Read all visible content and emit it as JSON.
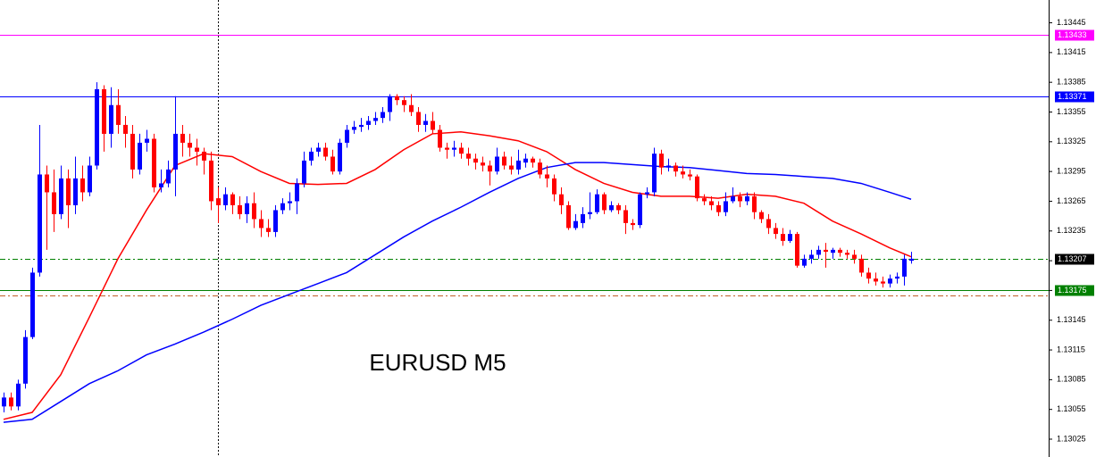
{
  "chart_data": {
    "type": "candlestick",
    "annotation": "EURUSD M5",
    "ylim": [
      1.13007,
      1.13468
    ],
    "yticks": [
      1.13025,
      1.13055,
      1.13085,
      1.13115,
      1.13145,
      1.13175,
      1.13205,
      1.13235,
      1.13265,
      1.13295,
      1.13325,
      1.13355,
      1.13385,
      1.13415,
      1.13445
    ],
    "up_color": "#0000ff",
    "down_color": "#ff0000",
    "cursor_index": 30,
    "levels": [
      {
        "value": 1.13433,
        "color": "#ff00ff",
        "style": "solid",
        "labeled": true
      },
      {
        "value": 1.13371,
        "color": "#0000ff",
        "style": "solid",
        "labeled": true
      },
      {
        "value": 1.13207,
        "color": "#008000",
        "style": "dashdot",
        "labeled": true,
        "label_color": "#000000"
      },
      {
        "value": 1.13175,
        "color": "#008000",
        "style": "solid",
        "labeled": true
      },
      {
        "value": 1.1317,
        "color": "#c0602a",
        "style": "dashdot",
        "labeled": false
      }
    ],
    "candles": [
      [
        1.13058,
        1.13072,
        1.13052,
        1.13067
      ],
      [
        1.13067,
        1.13072,
        1.13054,
        1.13058
      ],
      [
        1.13058,
        1.13085,
        1.13054,
        1.13081
      ],
      [
        1.13081,
        1.13135,
        1.13076,
        1.13128
      ],
      [
        1.13128,
        1.13198,
        1.13126,
        1.13193
      ],
      [
        1.13193,
        1.13342,
        1.13189,
        1.13292
      ],
      [
        1.13292,
        1.13301,
        1.13216,
        1.13274
      ],
      [
        1.13274,
        1.13297,
        1.13234,
        1.13252
      ],
      [
        1.13252,
        1.13301,
        1.13247,
        1.13288
      ],
      [
        1.13288,
        1.13297,
        1.13238,
        1.13261
      ],
      [
        1.13261,
        1.1331,
        1.13252,
        1.13288
      ],
      [
        1.13288,
        1.13301,
        1.13265,
        1.13274
      ],
      [
        1.13274,
        1.1331,
        1.1327,
        1.13301
      ],
      [
        1.13301,
        1.13385,
        1.13297,
        1.13378
      ],
      [
        1.13378,
        1.13382,
        1.13315,
        1.13333
      ],
      [
        1.13333,
        1.1338,
        1.13319,
        1.13362
      ],
      [
        1.13362,
        1.13378,
        1.13333,
        1.13342
      ],
      [
        1.13342,
        1.13351,
        1.13319,
        1.13333
      ],
      [
        1.13333,
        1.13342,
        1.13288,
        1.13297
      ],
      [
        1.13297,
        1.13333,
        1.13292,
        1.13324
      ],
      [
        1.13324,
        1.13337,
        1.13315,
        1.13328
      ],
      [
        1.13328,
        1.13333,
        1.13274,
        1.13279
      ],
      [
        1.13279,
        1.13297,
        1.13274,
        1.13283
      ],
      [
        1.13283,
        1.13306,
        1.13279,
        1.13297
      ],
      [
        1.13297,
        1.13371,
        1.1327,
        1.13333
      ],
      [
        1.13333,
        1.13342,
        1.1331,
        1.13324
      ],
      [
        1.13324,
        1.13333,
        1.1331,
        1.13319
      ],
      [
        1.13319,
        1.13328,
        1.13301,
        1.13315
      ],
      [
        1.13315,
        1.13319,
        1.13292,
        1.13306
      ],
      [
        1.13306,
        1.13315,
        1.13256,
        1.13265
      ],
      [
        1.13268,
        1.13279,
        1.13243,
        1.13261
      ],
      [
        1.13261,
        1.13279,
        1.13256,
        1.13272
      ],
      [
        1.13272,
        1.13274,
        1.13252,
        1.13261
      ],
      [
        1.13261,
        1.1327,
        1.13247,
        1.13252
      ],
      [
        1.13252,
        1.1327,
        1.13243,
        1.13263
      ],
      [
        1.13263,
        1.13274,
        1.13238,
        1.13247
      ],
      [
        1.13247,
        1.13256,
        1.13229,
        1.13238
      ],
      [
        1.13238,
        1.13247,
        1.13229,
        1.13234
      ],
      [
        1.13234,
        1.13261,
        1.13229,
        1.13256
      ],
      [
        1.13256,
        1.13268,
        1.13252,
        1.13263
      ],
      [
        1.13263,
        1.13274,
        1.13256,
        1.13265
      ],
      [
        1.13265,
        1.13288,
        1.13252,
        1.13283
      ],
      [
        1.13283,
        1.13315,
        1.13279,
        1.13306
      ],
      [
        1.13306,
        1.13319,
        1.13301,
        1.13315
      ],
      [
        1.13315,
        1.13324,
        1.1331,
        1.13319
      ],
      [
        1.13319,
        1.13324,
        1.13306,
        1.1331
      ],
      [
        1.1331,
        1.13317,
        1.13292,
        1.13295
      ],
      [
        1.13295,
        1.13328,
        1.13292,
        1.13324
      ],
      [
        1.13324,
        1.13342,
        1.13319,
        1.13337
      ],
      [
        1.13337,
        1.13346,
        1.13333,
        1.1334
      ],
      [
        1.1334,
        1.13349,
        1.13335,
        1.13342
      ],
      [
        1.13342,
        1.13351,
        1.13337,
        1.13346
      ],
      [
        1.13346,
        1.13355,
        1.13342,
        1.13349
      ],
      [
        1.13349,
        1.1336,
        1.13344,
        1.13355
      ],
      [
        1.13355,
        1.13373,
        1.13346,
        1.13371
      ],
      [
        1.13371,
        1.13373,
        1.13362,
        1.13367
      ],
      [
        1.13367,
        1.13371,
        1.13355,
        1.13362
      ],
      [
        1.13362,
        1.13373,
        1.13351,
        1.13355
      ],
      [
        1.13355,
        1.1336,
        1.13335,
        1.13342
      ],
      [
        1.13342,
        1.13353,
        1.13335,
        1.13346
      ],
      [
        1.13346,
        1.13355,
        1.13333,
        1.13337
      ],
      [
        1.13337,
        1.13342,
        1.13315,
        1.13319
      ],
      [
        1.13319,
        1.13324,
        1.13308,
        1.13317
      ],
      [
        1.13317,
        1.13326,
        1.1331,
        1.13319
      ],
      [
        1.13319,
        1.13324,
        1.13308,
        1.13313
      ],
      [
        1.13313,
        1.13319,
        1.13301,
        1.13308
      ],
      [
        1.13308,
        1.13313,
        1.13297,
        1.13304
      ],
      [
        1.13304,
        1.1331,
        1.13295,
        1.13301
      ],
      [
        1.13301,
        1.13306,
        1.13281,
        1.13295
      ],
      [
        1.13295,
        1.13319,
        1.13292,
        1.1331
      ],
      [
        1.1331,
        1.13315,
        1.13297,
        1.13301
      ],
      [
        1.13301,
        1.1331,
        1.13292,
        1.13297
      ],
      [
        1.13297,
        1.13317,
        1.13292,
        1.13306
      ],
      [
        1.13304,
        1.13313,
        1.13299,
        1.13308
      ],
      [
        1.13308,
        1.1331,
        1.13299,
        1.13304
      ],
      [
        1.13304,
        1.13308,
        1.13288,
        1.13292
      ],
      [
        1.13292,
        1.13301,
        1.13279,
        1.13288
      ],
      [
        1.13288,
        1.13292,
        1.13265,
        1.13272
      ],
      [
        1.13272,
        1.13279,
        1.13252,
        1.13261
      ],
      [
        1.13261,
        1.13265,
        1.13236,
        1.13238
      ],
      [
        1.13238,
        1.13252,
        1.13236,
        1.13245
      ],
      [
        1.13243,
        1.13259,
        1.13238,
        1.13252
      ],
      [
        1.13252,
        1.13274,
        1.13247,
        1.13254
      ],
      [
        1.13254,
        1.13277,
        1.13252,
        1.13272
      ],
      [
        1.13272,
        1.13274,
        1.13252,
        1.13256
      ],
      [
        1.13256,
        1.13265,
        1.13254,
        1.13261
      ],
      [
        1.13261,
        1.13263,
        1.13252,
        1.13256
      ],
      [
        1.13256,
        1.13261,
        1.13232,
        1.13243
      ],
      [
        1.13243,
        1.13247,
        1.13236,
        1.13241
      ],
      [
        1.13241,
        1.13274,
        1.13238,
        1.13272
      ],
      [
        1.13272,
        1.13279,
        1.13268,
        1.13274
      ],
      [
        1.13274,
        1.13319,
        1.1327,
        1.13313
      ],
      [
        1.13313,
        1.13317,
        1.13292,
        1.13299
      ],
      [
        1.13299,
        1.13308,
        1.13295,
        1.13301
      ],
      [
        1.13301,
        1.13304,
        1.1329,
        1.13295
      ],
      [
        1.13295,
        1.13301,
        1.13288,
        1.13292
      ],
      [
        1.13292,
        1.13297,
        1.13286,
        1.1329
      ],
      [
        1.1329,
        1.13292,
        1.13265,
        1.13268
      ],
      [
        1.13268,
        1.13272,
        1.13261,
        1.13265
      ],
      [
        1.13265,
        1.1327,
        1.13256,
        1.13261
      ],
      [
        1.13261,
        1.13265,
        1.1325,
        1.13254
      ],
      [
        1.13254,
        1.13274,
        1.1325,
        1.13265
      ],
      [
        1.13265,
        1.13279,
        1.13263,
        1.1327
      ],
      [
        1.1327,
        1.13274,
        1.13259,
        1.13265
      ],
      [
        1.13265,
        1.13274,
        1.13261,
        1.1327
      ],
      [
        1.1327,
        1.13274,
        1.13247,
        1.13254
      ],
      [
        1.13254,
        1.13256,
        1.13243,
        1.13247
      ],
      [
        1.13247,
        1.13252,
        1.13232,
        1.13238
      ],
      [
        1.13238,
        1.13243,
        1.13227,
        1.13232
      ],
      [
        1.13232,
        1.13238,
        1.1322,
        1.13225
      ],
      [
        1.13225,
        1.13236,
        1.13223,
        1.13232
      ],
      [
        1.13232,
        1.13234,
        1.13198,
        1.132
      ],
      [
        1.132,
        1.13211,
        1.13198,
        1.13207
      ],
      [
        1.13207,
        1.13216,
        1.13202,
        1.13211
      ],
      [
        1.13211,
        1.1322,
        1.13207,
        1.13216
      ],
      [
        1.13216,
        1.13223,
        1.13198,
        1.13214
      ],
      [
        1.13213,
        1.13218,
        1.13207,
        1.13216
      ],
      [
        1.13216,
        1.13218,
        1.13209,
        1.13213
      ],
      [
        1.13213,
        1.13216,
        1.13207,
        1.13211
      ],
      [
        1.13211,
        1.13216,
        1.13202,
        1.13207
      ],
      [
        1.13207,
        1.13211,
        1.13189,
        1.13193
      ],
      [
        1.13193,
        1.13198,
        1.13182,
        1.13187
      ],
      [
        1.13187,
        1.13193,
        1.1318,
        1.13184
      ],
      [
        1.13184,
        1.13189,
        1.13178,
        1.13182
      ],
      [
        1.13182,
        1.13191,
        1.13178,
        1.13187
      ],
      [
        1.13187,
        1.13193,
        1.13182,
        1.13189
      ],
      [
        1.13189,
        1.13211,
        1.1318,
        1.13207
      ],
      [
        1.13205,
        1.13214,
        1.13202,
        1.13207
      ]
    ],
    "ma": [
      {
        "color": "#ff0000",
        "index": [
          0,
          4,
          8,
          12,
          16,
          20,
          24,
          28,
          32,
          36,
          40,
          44,
          48,
          52,
          56,
          60,
          64,
          68,
          72,
          76,
          80,
          84,
          88,
          92,
          96,
          100,
          104,
          108,
          112,
          116,
          120,
          124,
          127
        ],
        "values": [
          1.13045,
          1.13052,
          1.1309,
          1.13148,
          1.13207,
          1.13256,
          1.13301,
          1.13313,
          1.1331,
          1.13295,
          1.13283,
          1.13282,
          1.13283,
          1.13297,
          1.13317,
          1.13333,
          1.13335,
          1.13331,
          1.13326,
          1.13315,
          1.13297,
          1.13283,
          1.13274,
          1.1327,
          1.1327,
          1.13268,
          1.13272,
          1.1327,
          1.13263,
          1.13245,
          1.13232,
          1.13218,
          1.13209
        ]
      },
      {
        "color": "#0000ff",
        "index": [
          0,
          4,
          8,
          12,
          16,
          20,
          24,
          28,
          32,
          36,
          40,
          44,
          48,
          52,
          56,
          60,
          64,
          68,
          72,
          76,
          80,
          84,
          88,
          92,
          96,
          100,
          104,
          108,
          112,
          116,
          120,
          124,
          127
        ],
        "values": [
          1.13042,
          1.13045,
          1.13063,
          1.13081,
          1.13094,
          1.1311,
          1.13121,
          1.13133,
          1.13146,
          1.1316,
          1.13171,
          1.13182,
          1.13193,
          1.13211,
          1.13229,
          1.13245,
          1.13259,
          1.13274,
          1.13288,
          1.13299,
          1.13304,
          1.13304,
          1.13302,
          1.133,
          1.13299,
          1.13296,
          1.13293,
          1.13292,
          1.1329,
          1.13288,
          1.13283,
          1.13274,
          1.13267
        ]
      }
    ]
  }
}
